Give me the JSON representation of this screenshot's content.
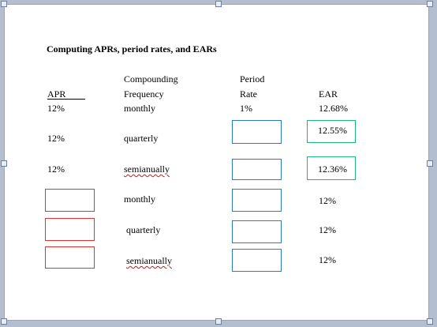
{
  "title": "Computing APRs, period rates, and EARs",
  "headers": {
    "apr": "APR",
    "compounding_line1": "Compounding",
    "compounding_line2": "Frequency",
    "period_line1": "Period",
    "period_line2": "Rate",
    "ear": "EAR"
  },
  "rows": [
    {
      "apr": "12%",
      "frequency": "monthly",
      "period_rate": "1%",
      "ear": "12.68%"
    },
    {
      "apr": "12%",
      "frequency": "quarterly",
      "period_rate": "",
      "ear": "12.55%"
    },
    {
      "apr": "12%",
      "frequency": "semianually",
      "period_rate": "",
      "ear": "12.36%"
    },
    {
      "apr": "",
      "frequency": "monthly",
      "period_rate": "",
      "ear": "12%"
    },
    {
      "apr": "",
      "frequency": "quarterly",
      "period_rate": "",
      "ear": "12%"
    },
    {
      "apr": "",
      "frequency": "semianually",
      "period_rate": "",
      "ear": "12%"
    }
  ],
  "colors": {
    "apr_input_border": "#e03030",
    "period_rate_input_border": "#2a7bc0",
    "ear_result_border": "#1bb877",
    "spelling_squiggle": "#dd1111"
  }
}
